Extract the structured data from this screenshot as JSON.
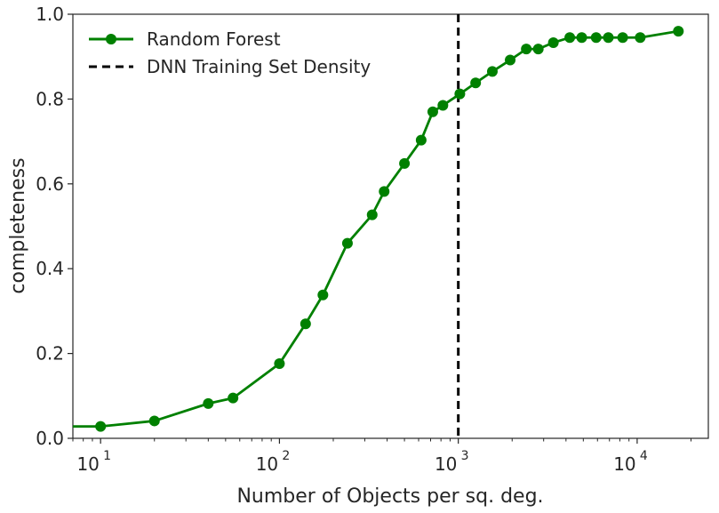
{
  "chart_data": {
    "type": "line",
    "title": "",
    "xlabel": "Number of Objects per sq. deg.",
    "ylabel": "completeness",
    "xscale": "log",
    "xlim": [
      7,
      25000
    ],
    "ylim": [
      0.0,
      1.0
    ],
    "grid": false,
    "legend_position": "top-left",
    "x_ticks": [
      {
        "value": 10,
        "base": "10",
        "exp": "1"
      },
      {
        "value": 100,
        "base": "10",
        "exp": "2"
      },
      {
        "value": 1000,
        "base": "10",
        "exp": "3"
      },
      {
        "value": 10000,
        "base": "10",
        "exp": "4"
      }
    ],
    "y_ticks": [
      {
        "value": 0.0,
        "label": "0.0"
      },
      {
        "value": 0.2,
        "label": "0.2"
      },
      {
        "value": 0.4,
        "label": "0.4"
      },
      {
        "value": 0.6,
        "label": "0.6"
      },
      {
        "value": 0.8,
        "label": "0.8"
      },
      {
        "value": 1.0,
        "label": "1.0"
      }
    ],
    "series": [
      {
        "name": "Random Forest",
        "color": "#008000",
        "style": "line-with-circle-markers",
        "line_start": {
          "x": 7,
          "y": 0.028
        },
        "points": [
          {
            "x": 10,
            "y": 0.028
          },
          {
            "x": 20,
            "y": 0.041
          },
          {
            "x": 40,
            "y": 0.082
          },
          {
            "x": 55,
            "y": 0.095
          },
          {
            "x": 100,
            "y": 0.176
          },
          {
            "x": 140,
            "y": 0.27
          },
          {
            "x": 175,
            "y": 0.338
          },
          {
            "x": 240,
            "y": 0.46
          },
          {
            "x": 330,
            "y": 0.527
          },
          {
            "x": 385,
            "y": 0.582
          },
          {
            "x": 500,
            "y": 0.648
          },
          {
            "x": 620,
            "y": 0.703
          },
          {
            "x": 720,
            "y": 0.77
          },
          {
            "x": 820,
            "y": 0.785
          },
          {
            "x": 1020,
            "y": 0.812
          },
          {
            "x": 1250,
            "y": 0.838
          },
          {
            "x": 1550,
            "y": 0.865
          },
          {
            "x": 1950,
            "y": 0.892
          },
          {
            "x": 2400,
            "y": 0.918
          },
          {
            "x": 2800,
            "y": 0.918
          },
          {
            "x": 3400,
            "y": 0.933
          },
          {
            "x": 4200,
            "y": 0.945
          },
          {
            "x": 4900,
            "y": 0.945
          },
          {
            "x": 5900,
            "y": 0.945
          },
          {
            "x": 6900,
            "y": 0.945
          },
          {
            "x": 8300,
            "y": 0.945
          },
          {
            "x": 10400,
            "y": 0.945
          },
          {
            "x": 17000,
            "y": 0.96
          }
        ]
      },
      {
        "name": "DNN Training Set Density",
        "color": "#000000",
        "style": "vertical-dashed-line",
        "x": 1000
      }
    ]
  }
}
